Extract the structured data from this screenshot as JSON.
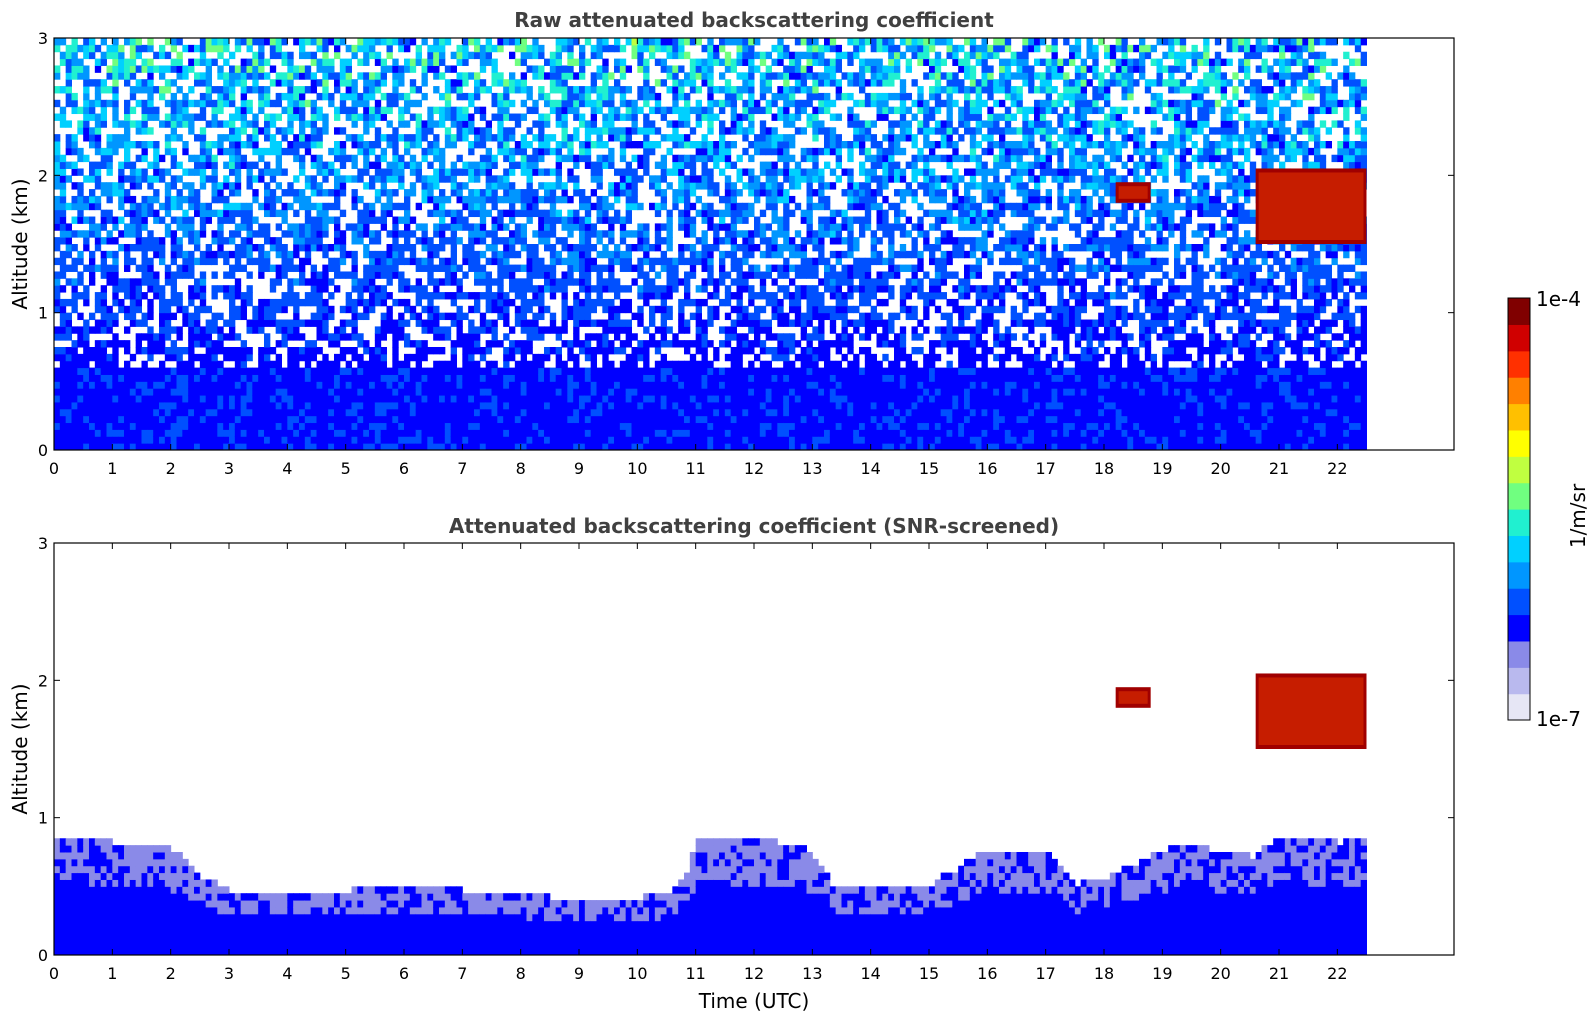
{
  "chart_data": [
    {
      "type": "heatmap",
      "title": "Raw attenuated backscattering coefficient",
      "xlabel": "",
      "ylabel": "Altitude (km)",
      "xlim": [
        0,
        24
      ],
      "ylim": [
        0,
        3
      ],
      "x_ticks": [
        0,
        1,
        2,
        3,
        4,
        5,
        6,
        7,
        8,
        9,
        10,
        11,
        12,
        13,
        14,
        15,
        16,
        17,
        18,
        19,
        20,
        21,
        22
      ],
      "y_ticks": [
        0,
        1,
        2,
        3
      ],
      "data_time_range": [
        0,
        22.5
      ],
      "description_of_features": [
        {
          "feature": "dense low-level aerosol layer",
          "x_range": [
            0,
            22.5
          ],
          "y_range": [
            0,
            0.6
          ]
        },
        {
          "feature": "cloud layer",
          "x_range": [
            18.2,
            18.8
          ],
          "y_range": [
            1.8,
            1.95
          ]
        },
        {
          "feature": "cloud layer",
          "x_range": [
            20.6,
            22.5
          ],
          "y_range": [
            1.5,
            2.05
          ]
        }
      ]
    },
    {
      "type": "heatmap",
      "title": "Attenuated backscattering coefficient (SNR-screened)",
      "xlabel": "Time (UTC)",
      "ylabel": "Altitude (km)",
      "xlim": [
        0,
        24
      ],
      "ylim": [
        0,
        3
      ],
      "x_ticks": [
        0,
        1,
        2,
        3,
        4,
        5,
        6,
        7,
        8,
        9,
        10,
        11,
        12,
        13,
        14,
        15,
        16,
        17,
        18,
        19,
        20,
        21,
        22
      ],
      "y_ticks": [
        0,
        1,
        2,
        3
      ],
      "data_time_range": [
        0,
        22.5
      ],
      "boundary_layer_top_km": {
        "x": [
          0,
          1,
          2,
          2.5,
          3,
          4,
          5,
          6,
          7,
          8,
          9,
          10,
          10.5,
          10.8,
          11,
          12,
          12.8,
          13.3,
          14,
          15,
          16,
          17,
          17.5,
          18,
          19,
          19.5,
          20,
          20.5,
          21,
          22,
          22.5
        ],
        "y": [
          0.85,
          0.8,
          0.75,
          0.55,
          0.45,
          0.42,
          0.45,
          0.48,
          0.45,
          0.42,
          0.38,
          0.4,
          0.42,
          0.6,
          0.85,
          0.82,
          0.78,
          0.5,
          0.48,
          0.5,
          0.75,
          0.72,
          0.5,
          0.55,
          0.75,
          0.78,
          0.72,
          0.7,
          0.85,
          0.8,
          0.82
        ]
      },
      "description_of_features": [
        {
          "feature": "cloud layer",
          "x_range": [
            18.2,
            18.8
          ],
          "y_range": [
            1.8,
            1.95
          ]
        },
        {
          "feature": "cloud layer",
          "x_range": [
            20.6,
            22.5
          ],
          "y_range": [
            1.5,
            2.05
          ]
        }
      ]
    }
  ],
  "colorbar": {
    "label": "1/m/sr",
    "max_label": "1e-4",
    "min_label": "1e-7",
    "colors": [
      "#e6e6f5",
      "#b9b9ee",
      "#8a8ae8",
      "#0000ff",
      "#0050ff",
      "#0096ff",
      "#00d0ff",
      "#20f0d0",
      "#70ff80",
      "#c0ff40",
      "#ffff00",
      "#ffc000",
      "#ff8000",
      "#ff3000",
      "#d00000",
      "#800000"
    ]
  }
}
